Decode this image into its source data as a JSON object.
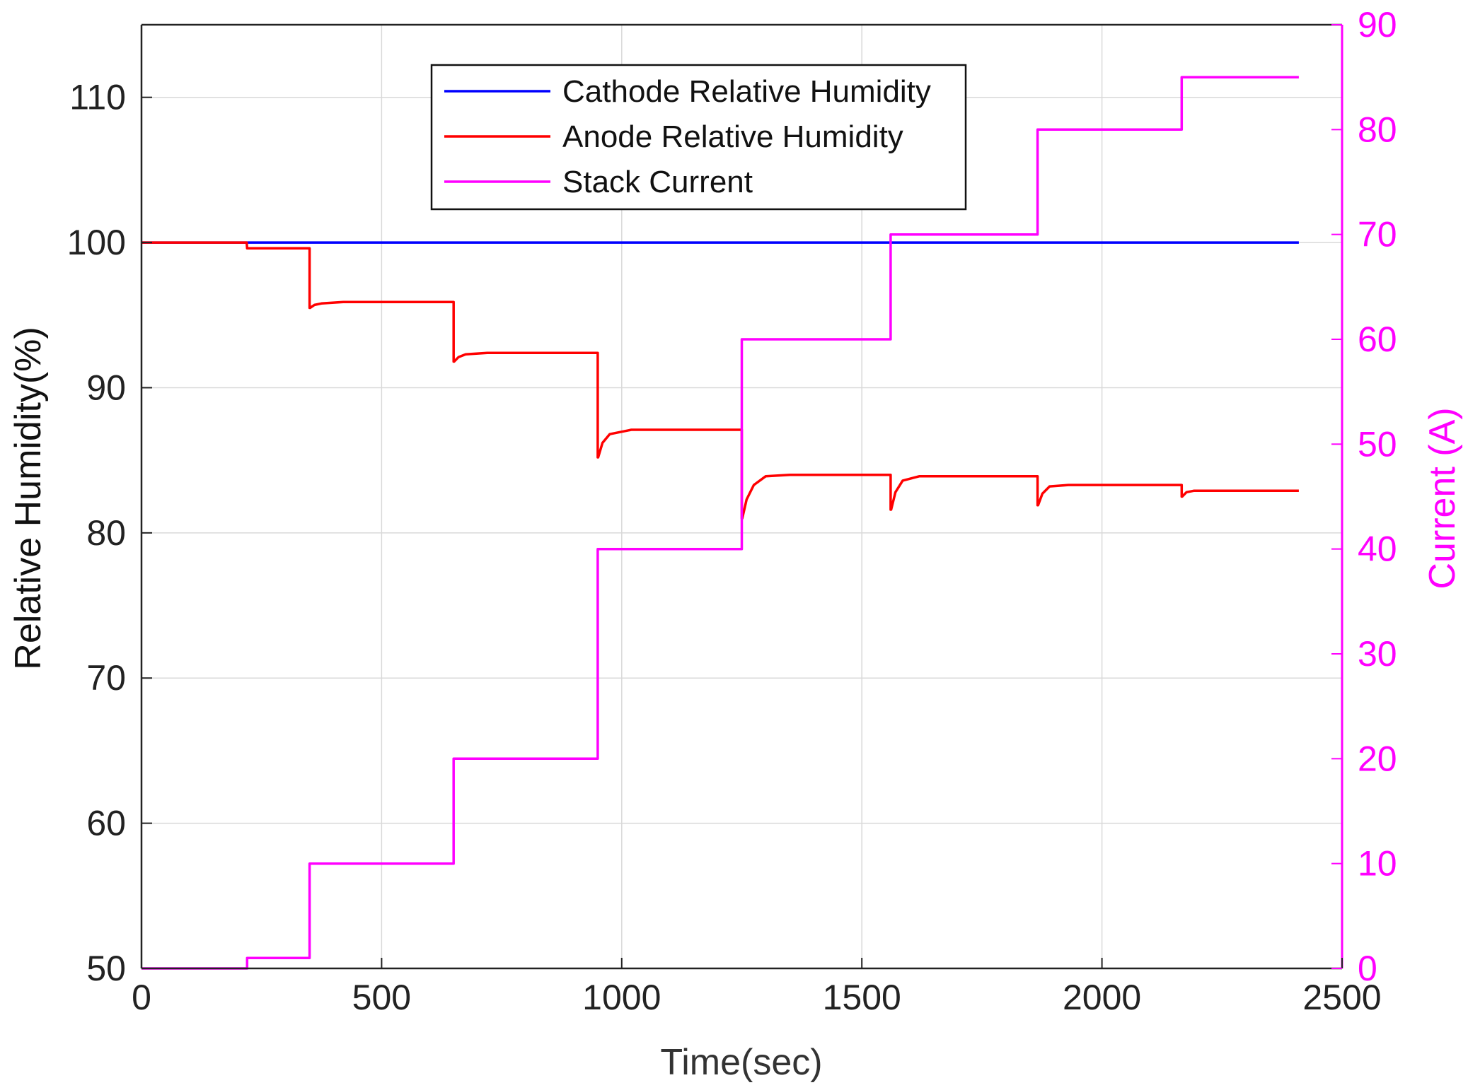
{
  "chart_data": {
    "type": "line",
    "xlabel": "Time(sec)",
    "ylabel_left": "Relative Humidity(%)",
    "ylabel_right": "Current (A)",
    "xlim": [
      0,
      2500
    ],
    "ylim_left": [
      50,
      115
    ],
    "ylim_right": [
      0,
      90
    ],
    "xticks": [
      0,
      500,
      1000,
      1500,
      2000,
      2500
    ],
    "yticks_left": [
      50,
      60,
      70,
      80,
      90,
      100,
      110
    ],
    "yticks_right": [
      0,
      10,
      20,
      30,
      40,
      50,
      60,
      70,
      80,
      90
    ],
    "grid": true,
    "legend_position": "top-center",
    "series": [
      {
        "name": "Cathode Relative Humidity",
        "axis": "left",
        "color": "#0000ff",
        "x": [
          0,
          2410
        ],
        "y": [
          100,
          100
        ]
      },
      {
        "name": "Anode Relative Humidity",
        "axis": "left",
        "color": "#ff0000",
        "x": [
          0,
          219,
          220,
          350,
          350,
          351,
          360,
          375,
          420,
          650,
          650,
          651,
          660,
          675,
          720,
          950,
          950,
          951,
          960,
          975,
          1020,
          1250,
          1250,
          1251,
          1260,
          1275,
          1300,
          1350,
          1560,
          1560,
          1561,
          1570,
          1585,
          1620,
          1866,
          1866,
          1867,
          1876,
          1891,
          1930,
          2166,
          2166,
          2167,
          2176,
          2191,
          2230,
          2410
        ],
        "y": [
          100,
          100,
          99.6,
          99.6,
          95.5,
          95.5,
          95.7,
          95.8,
          95.9,
          95.9,
          91.8,
          91.8,
          92.1,
          92.3,
          92.4,
          92.4,
          85.2,
          85.2,
          86.2,
          86.8,
          87.1,
          87.1,
          81.0,
          81.0,
          82.3,
          83.3,
          83.9,
          84.0,
          84.0,
          81.6,
          81.6,
          82.8,
          83.6,
          83.9,
          83.9,
          81.9,
          81.9,
          82.7,
          83.2,
          83.3,
          83.3,
          82.5,
          82.5,
          82.8,
          82.9,
          82.9,
          82.9
        ]
      },
      {
        "name": "Stack Current",
        "axis": "right",
        "color": "#ff00ff",
        "x": [
          0,
          220,
          220,
          350,
          350,
          650,
          650,
          950,
          950,
          1250,
          1250,
          1560,
          1560,
          1866,
          1866,
          2166,
          2166,
          2410
        ],
        "y": [
          0,
          0,
          1,
          1,
          10,
          10,
          20,
          20,
          40,
          40,
          60,
          60,
          70,
          70,
          80,
          80,
          85,
          85
        ]
      }
    ]
  }
}
